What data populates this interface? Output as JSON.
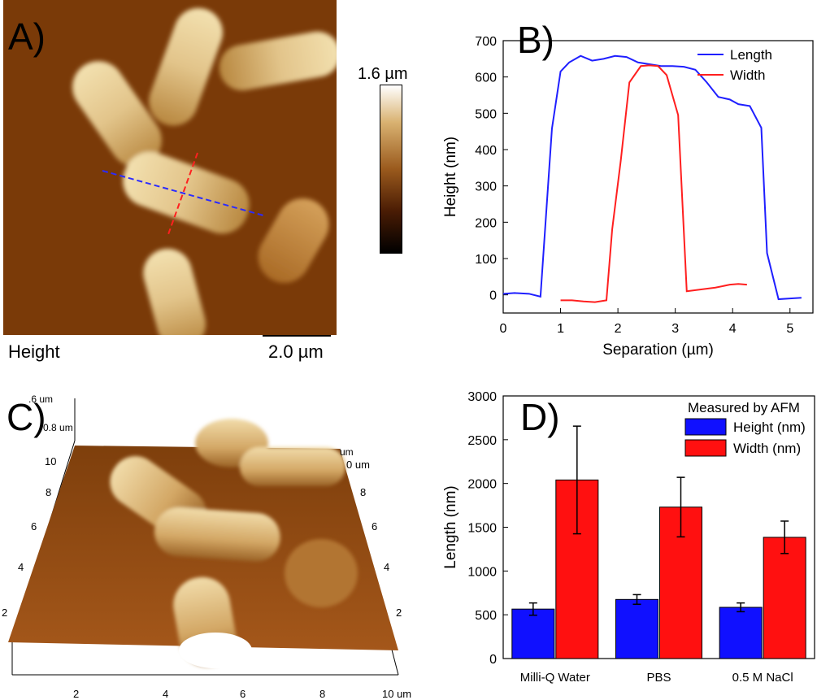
{
  "panels": {
    "a": {
      "label": "A)",
      "caption": "Height",
      "scalebar_label": "2.0 µm",
      "colorbar_max_label": "1.6 µm",
      "colors": {
        "background": "#7a3a08",
        "bacteria": "#d9b271",
        "bacteria_tip": "#f2dfae",
        "length_line": "#2b2bff",
        "width_line": "#ff2020"
      }
    },
    "b": {
      "label": "B)"
    },
    "c": {
      "label": "C)",
      "z_labels": [
        ".6 um",
        "0.8 um"
      ],
      "left_axis_ticks": [
        "10",
        "8",
        "6",
        "4",
        "2"
      ],
      "right_axis_ticks": [
        "um",
        "0 um",
        "8",
        "6",
        "4",
        "2"
      ],
      "bottom_axis_ticks": [
        "2",
        "4",
        "6",
        "8",
        "10 um"
      ]
    },
    "d": {
      "label": "D)"
    }
  },
  "chart_data": [
    {
      "type": "line",
      "xlabel": "Separation (µm)",
      "ylabel": "Height (nm)",
      "xlim": [
        0,
        5.4
      ],
      "ylim": [
        -50,
        700
      ],
      "xticks": [
        0,
        1,
        2,
        3,
        4,
        5
      ],
      "yticks": [
        0,
        100,
        200,
        300,
        400,
        500,
        600,
        700
      ],
      "legend": "top-right",
      "series": [
        {
          "name": "Length",
          "color": "#1f1fff",
          "x": [
            0,
            0.2,
            0.45,
            0.65,
            0.85,
            1.0,
            1.15,
            1.35,
            1.55,
            1.75,
            1.95,
            2.15,
            2.35,
            2.55,
            2.75,
            2.95,
            3.15,
            3.35,
            3.55,
            3.75,
            3.95,
            4.1,
            4.3,
            4.5,
            4.6,
            4.8,
            5.0,
            5.2
          ],
          "y": [
            3,
            5,
            3,
            -5,
            458,
            615,
            640,
            658,
            645,
            650,
            658,
            655,
            640,
            635,
            630,
            630,
            628,
            620,
            585,
            545,
            538,
            525,
            520,
            460,
            115,
            -12,
            -10,
            -8
          ]
        },
        {
          "name": "Width",
          "color": "#ff1f1f",
          "x": [
            1.0,
            1.2,
            1.4,
            1.6,
            1.8,
            1.9,
            2.05,
            2.2,
            2.4,
            2.55,
            2.7,
            2.85,
            3.05,
            3.2,
            3.45,
            3.7,
            3.95,
            4.1,
            4.25
          ],
          "y": [
            -15,
            -15,
            -18,
            -20,
            -15,
            180,
            370,
            585,
            630,
            632,
            630,
            605,
            495,
            10,
            15,
            20,
            28,
            30,
            28
          ]
        }
      ]
    },
    {
      "type": "bar",
      "ylabel": "Length (nm)",
      "ylim": [
        0,
        3000
      ],
      "yticks": [
        0,
        500,
        1000,
        1500,
        2000,
        2500,
        3000
      ],
      "categories": [
        "Milli-Q Water",
        "PBS",
        "0.5 M NaCl"
      ],
      "legend": "top-right",
      "legend_title": "Measured by AFM",
      "series": [
        {
          "name": "Height (nm)",
          "color": "#1010ff",
          "values": [
            565,
            675,
            585
          ],
          "errors": [
            70,
            55,
            50
          ]
        },
        {
          "name": "Width (nm)",
          "color": "#ff1010",
          "values": [
            2040,
            1730,
            1385
          ],
          "errors": [
            615,
            340,
            185
          ]
        }
      ]
    }
  ]
}
